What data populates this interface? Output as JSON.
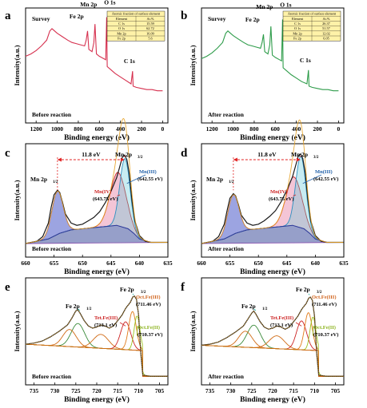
{
  "chart_data": [
    {
      "id": "a",
      "type": "line",
      "xlabel": "Binding energy (eV)",
      "ylabel": "Intensity(a.u.)",
      "xlim": [
        1300,
        -50
      ],
      "ylim": [
        0,
        10
      ],
      "xticks": [
        1200,
        1000,
        800,
        600,
        400,
        200,
        0
      ],
      "corner_top": "Survey",
      "corner_bottom": "Before reaction",
      "line_color": "#d6314f",
      "points": [
        [
          1300,
          5.8
        ],
        [
          1250,
          6.0
        ],
        [
          1200,
          6.3
        ],
        [
          1150,
          6.7
        ],
        [
          1100,
          7.2
        ],
        [
          1070,
          8.0
        ],
        [
          1050,
          8.2
        ],
        [
          1000,
          7.8
        ],
        [
          950,
          7.5
        ],
        [
          900,
          7.2
        ],
        [
          860,
          7.0
        ],
        [
          820,
          6.9
        ],
        [
          780,
          6.8
        ],
        [
          740,
          6.7
        ],
        [
          725,
          7.2
        ],
        [
          712,
          8.0
        ],
        [
          700,
          6.4
        ],
        [
          670,
          6.2
        ],
        [
          652,
          7.0
        ],
        [
          642,
          8.6
        ],
        [
          628,
          6.0
        ],
        [
          600,
          5.8
        ],
        [
          560,
          5.6
        ],
        [
          540,
          5.5
        ],
        [
          531,
          9.2
        ],
        [
          526,
          4.9
        ],
        [
          500,
          4.7
        ],
        [
          450,
          4.3
        ],
        [
          400,
          4.0
        ],
        [
          350,
          3.7
        ],
        [
          300,
          3.4
        ],
        [
          285,
          4.5
        ],
        [
          280,
          3.2
        ],
        [
          250,
          3.1
        ],
        [
          200,
          3.0
        ],
        [
          150,
          2.9
        ],
        [
          100,
          2.9
        ],
        [
          50,
          2.8
        ],
        [
          0,
          2.8
        ]
      ],
      "peaks": [
        {
          "label": "Fe 2p",
          "x": 710
        },
        {
          "label": "Mn 2p",
          "x": 642
        },
        {
          "label": "O 1s",
          "x": 531
        },
        {
          "label": "C 1s",
          "x": 285
        }
      ],
      "table": {
        "title": "Atomic fraction of surface element",
        "columns": [
          "Element",
          "At.%"
        ],
        "rows": [
          [
            "C 1s",
            "15.59"
          ],
          [
            "O 1s",
            "62.72"
          ],
          [
            "Mn 2p",
            "16.09"
          ],
          [
            "Fe 2p",
            "5.6"
          ]
        ]
      }
    },
    {
      "id": "b",
      "type": "line",
      "xlabel": "Binding energy (eV)",
      "ylabel": "Intensity(a.u.)",
      "xlim": [
        1300,
        -50
      ],
      "ylim": [
        0,
        10
      ],
      "xticks": [
        1200,
        1000,
        800,
        600,
        400,
        200,
        0
      ],
      "corner_top": "Survey",
      "corner_bottom": "After reaction",
      "line_color": "#2e9c4a",
      "points": [
        [
          1300,
          5.6
        ],
        [
          1250,
          5.8
        ],
        [
          1200,
          6.1
        ],
        [
          1150,
          6.5
        ],
        [
          1100,
          7.0
        ],
        [
          1070,
          7.8
        ],
        [
          1050,
          8.0
        ],
        [
          1000,
          7.6
        ],
        [
          950,
          7.3
        ],
        [
          900,
          7.0
        ],
        [
          860,
          6.8
        ],
        [
          820,
          6.7
        ],
        [
          780,
          6.6
        ],
        [
          740,
          6.5
        ],
        [
          725,
          7.0
        ],
        [
          712,
          7.7
        ],
        [
          700,
          6.2
        ],
        [
          670,
          6.0
        ],
        [
          652,
          6.8
        ],
        [
          642,
          8.4
        ],
        [
          628,
          5.9
        ],
        [
          600,
          5.7
        ],
        [
          560,
          5.5
        ],
        [
          540,
          5.4
        ],
        [
          531,
          9.0
        ],
        [
          526,
          4.8
        ],
        [
          500,
          4.6
        ],
        [
          450,
          4.2
        ],
        [
          400,
          3.9
        ],
        [
          350,
          3.6
        ],
        [
          300,
          3.4
        ],
        [
          285,
          4.6
        ],
        [
          280,
          3.2
        ],
        [
          250,
          3.1
        ],
        [
          200,
          3.0
        ],
        [
          150,
          2.9
        ],
        [
          100,
          2.9
        ],
        [
          50,
          2.8
        ],
        [
          0,
          2.8
        ]
      ],
      "peaks": [
        {
          "label": "Fe 2p",
          "x": 710
        },
        {
          "label": "Mn 2p",
          "x": 642
        },
        {
          "label": "O 1s",
          "x": 531
        },
        {
          "label": "C 1s",
          "x": 285
        }
      ],
      "table": {
        "title": "Atomic fraction of surface element",
        "columns": [
          "Element",
          "At.%"
        ],
        "rows": [
          [
            "C 1s",
            "26.37"
          ],
          [
            "O 1s",
            "51.57"
          ],
          [
            "Mn 2p",
            "12.02"
          ],
          [
            "Fe 2p",
            "6.05"
          ]
        ]
      }
    },
    {
      "id": "c",
      "type": "line",
      "xlabel": "Binding energy (eV)",
      "ylabel": "Intensity(a.u.)",
      "xlim": [
        660,
        635
      ],
      "ylim": [
        0,
        10
      ],
      "xticks": [
        660,
        655,
        650,
        645,
        640,
        635
      ],
      "corner_bottom": "Before reaction",
      "raw": [
        [
          660,
          1.2
        ],
        [
          658,
          1.4
        ],
        [
          657,
          1.8
        ],
        [
          656,
          3.0
        ],
        [
          655.5,
          4.4
        ],
        [
          655,
          5.5
        ],
        [
          654.4,
          5.9
        ],
        [
          654,
          5.7
        ],
        [
          653.5,
          4.8
        ],
        [
          653,
          3.8
        ],
        [
          652,
          3.0
        ],
        [
          651,
          2.8
        ],
        [
          650,
          2.9
        ],
        [
          649,
          3.2
        ],
        [
          648,
          3.5
        ],
        [
          647,
          4.0
        ],
        [
          646,
          4.8
        ],
        [
          645,
          5.8
        ],
        [
          644,
          7.0
        ],
        [
          643.5,
          7.9
        ],
        [
          643,
          8.8
        ],
        [
          642.6,
          9.0
        ],
        [
          642.2,
          8.6
        ],
        [
          641.8,
          7.4
        ],
        [
          641.3,
          5.0
        ],
        [
          640.8,
          3.2
        ],
        [
          640,
          1.9
        ],
        [
          639,
          1.4
        ],
        [
          638,
          1.3
        ],
        [
          636,
          1.3
        ],
        [
          635,
          1.3
        ]
      ],
      "background": [
        [
          660,
          1.2
        ],
        [
          656,
          1.6
        ],
        [
          654,
          2.1
        ],
        [
          652,
          2.4
        ],
        [
          650,
          2.5
        ],
        [
          648,
          2.6
        ],
        [
          646,
          2.7
        ],
        [
          644,
          2.8
        ],
        [
          642,
          2.5
        ],
        [
          641,
          2.1
        ],
        [
          640,
          1.6
        ],
        [
          638,
          1.3
        ],
        [
          635,
          1.3
        ]
      ],
      "mn4": {
        "center": 643.75,
        "height": 4.7,
        "width": 1.4,
        "color": "#cc2222"
      },
      "mn3": {
        "center": 642.55,
        "height": 6.1,
        "width": 0.9,
        "color": "#2b8fc0"
      },
      "doublet": {
        "center": 654.4,
        "height": 3.8,
        "width": 1.0,
        "color": "#7a2ea8"
      },
      "labels": {
        "mn12": "Mn 2p",
        "mn12_sub": "1/2",
        "mn32": "Mn 2p",
        "mn32_sub": "3/2",
        "sep": "11.8 eV",
        "mn4": "Mn(IV)",
        "mn4_val": "(643.75 eV)",
        "mn3": "Mn(III)",
        "mn3_val": "(642.55 eV)"
      }
    },
    {
      "id": "d",
      "type": "line",
      "xlabel": "Binding energy (eV)",
      "ylabel": "Intensity(a.u.)",
      "xlim": [
        660,
        635
      ],
      "ylim": [
        0,
        10
      ],
      "xticks": [
        660,
        655,
        650,
        645,
        640,
        635
      ],
      "corner_bottom": "After reaction",
      "raw": [
        [
          660,
          1.2
        ],
        [
          658,
          1.4
        ],
        [
          657,
          1.8
        ],
        [
          656,
          2.9
        ],
        [
          655.5,
          4.1
        ],
        [
          655,
          5.2
        ],
        [
          654.4,
          5.6
        ],
        [
          654,
          5.4
        ],
        [
          653.5,
          4.6
        ],
        [
          653,
          3.7
        ],
        [
          652,
          3.0
        ],
        [
          651,
          2.8
        ],
        [
          650,
          2.9
        ],
        [
          649,
          3.2
        ],
        [
          648,
          3.6
        ],
        [
          647,
          4.1
        ],
        [
          646,
          4.9
        ],
        [
          645,
          5.9
        ],
        [
          644,
          7.1
        ],
        [
          643.5,
          8.0
        ],
        [
          643,
          8.9
        ],
        [
          642.6,
          9.1
        ],
        [
          642.2,
          8.7
        ],
        [
          641.8,
          7.5
        ],
        [
          641.3,
          5.1
        ],
        [
          640.8,
          3.2
        ],
        [
          640,
          1.9
        ],
        [
          639,
          1.4
        ],
        [
          638,
          1.3
        ],
        [
          636,
          1.3
        ],
        [
          635,
          1.3
        ]
      ],
      "background": [
        [
          660,
          1.2
        ],
        [
          656,
          1.6
        ],
        [
          654,
          2.1
        ],
        [
          652,
          2.4
        ],
        [
          650,
          2.5
        ],
        [
          648,
          2.6
        ],
        [
          646,
          2.7
        ],
        [
          644,
          2.8
        ],
        [
          642,
          2.5
        ],
        [
          641,
          2.1
        ],
        [
          640,
          1.6
        ],
        [
          638,
          1.3
        ],
        [
          635,
          1.3
        ]
      ],
      "mn4": {
        "center": 643.75,
        "height": 4.3,
        "width": 1.4,
        "color": "#cc2222"
      },
      "mn3": {
        "center": 642.55,
        "height": 6.3,
        "width": 0.9,
        "color": "#2b8fc0"
      },
      "doublet": {
        "center": 654.4,
        "height": 3.5,
        "width": 1.0,
        "color": "#7a2ea8"
      },
      "labels": {
        "mn12": "Mn 2p",
        "mn12_sub": "1/2",
        "mn32": "Mn 2p",
        "mn32_sub": "3/2",
        "sep": "11.8 eV",
        "mn4": "Mn(IV)",
        "mn4_val": "(643.75 eV)",
        "mn3": "Mn(III)",
        "mn3_val": "(642.55 eV)"
      }
    },
    {
      "id": "e",
      "type": "line",
      "xlabel": "Binding energy (eV)",
      "ylabel": "Intensity(a.u.)",
      "xlim": [
        737,
        703
      ],
      "ylim": [
        0,
        10
      ],
      "xticks": [
        735,
        730,
        725,
        720,
        715,
        710,
        705
      ],
      "corner_bottom": "Before reaction",
      "raw": [
        [
          737,
          3.8
        ],
        [
          735,
          3.9
        ],
        [
          733,
          4.1
        ],
        [
          731,
          4.5
        ],
        [
          729,
          5.0
        ],
        [
          727,
          5.6
        ],
        [
          726,
          6.2
        ],
        [
          725,
          6.9
        ],
        [
          724.5,
          7.0
        ],
        [
          724,
          6.7
        ],
        [
          723,
          6.0
        ],
        [
          722,
          5.5
        ],
        [
          721,
          5.3
        ],
        [
          720,
          5.4
        ],
        [
          719,
          5.6
        ],
        [
          718,
          5.5
        ],
        [
          717,
          5.3
        ],
        [
          716,
          5.5
        ],
        [
          715,
          6.0
        ],
        [
          714,
          6.5
        ],
        [
          713,
          7.2
        ],
        [
          712,
          7.7
        ],
        [
          711.4,
          8.2
        ],
        [
          711,
          8.3
        ],
        [
          710.5,
          8.0
        ],
        [
          710,
          6.5
        ],
        [
          709.5,
          3.0
        ],
        [
          709,
          0.9
        ],
        [
          707,
          0.8
        ],
        [
          705,
          0.8
        ],
        [
          703,
          0.8
        ]
      ],
      "components": [
        {
          "center": 724.5,
          "height": 2.2,
          "width": 1.6,
          "color": "#3a8a3a"
        },
        {
          "center": 726.5,
          "height": 1.6,
          "width": 1.6,
          "color": "#d06a14"
        },
        {
          "center": 719.0,
          "height": 1.3,
          "width": 1.8,
          "color": "#d06a14"
        },
        {
          "center": 713.1,
          "height": 2.6,
          "width": 1.2,
          "color": "#cc2222"
        },
        {
          "center": 711.46,
          "height": 3.6,
          "width": 0.9,
          "color": "#e07a18"
        },
        {
          "center": 710.37,
          "height": 3.2,
          "width": 0.7,
          "color": "#9ac21e"
        }
      ],
      "labels": {
        "fe12": "Fe 2p",
        "fe12_sub": "1/2",
        "fe32": "Fe 2p",
        "fe32_sub": "3/2",
        "oct3": "Oct.Fe(III)",
        "oct3_val": "(711.46 eV)",
        "tet3": "Tet.Fe(III)",
        "tet3_val": "(713.1 eV)",
        "oct2": "Oct.Fe(II)",
        "oct2_val": "(710.37 eV)"
      }
    },
    {
      "id": "f",
      "type": "line",
      "xlabel": "Binding energy (eV)",
      "ylabel": "Intensity(a.u.)",
      "xlim": [
        737,
        703
      ],
      "ylim": [
        0,
        10
      ],
      "xticks": [
        735,
        730,
        725,
        720,
        715,
        710,
        705
      ],
      "corner_bottom": "After reaction",
      "raw": [
        [
          737,
          3.7
        ],
        [
          735,
          3.8
        ],
        [
          733,
          4.0
        ],
        [
          731,
          4.4
        ],
        [
          729,
          4.9
        ],
        [
          727,
          5.5
        ],
        [
          726,
          6.1
        ],
        [
          725,
          6.7
        ],
        [
          724.5,
          6.9
        ],
        [
          724,
          6.6
        ],
        [
          723,
          5.9
        ],
        [
          722,
          5.4
        ],
        [
          721,
          5.2
        ],
        [
          720,
          5.3
        ],
        [
          719,
          5.5
        ],
        [
          718,
          5.4
        ],
        [
          717,
          5.2
        ],
        [
          716,
          5.4
        ],
        [
          715,
          5.9
        ],
        [
          714,
          6.4
        ],
        [
          713,
          7.1
        ],
        [
          712,
          7.6
        ],
        [
          711.4,
          8.1
        ],
        [
          711,
          8.2
        ],
        [
          710.5,
          7.9
        ],
        [
          710,
          6.4
        ],
        [
          709.5,
          3.0
        ],
        [
          709,
          0.9
        ],
        [
          707,
          0.8
        ],
        [
          705,
          0.8
        ],
        [
          703,
          0.8
        ]
      ],
      "components": [
        {
          "center": 724.5,
          "height": 2.1,
          "width": 1.6,
          "color": "#3a8a3a"
        },
        {
          "center": 726.5,
          "height": 1.5,
          "width": 1.6,
          "color": "#d06a14"
        },
        {
          "center": 719.0,
          "height": 1.2,
          "width": 1.8,
          "color": "#d06a14"
        },
        {
          "center": 713.1,
          "height": 2.7,
          "width": 1.2,
          "color": "#cc2222"
        },
        {
          "center": 711.46,
          "height": 3.5,
          "width": 0.9,
          "color": "#e07a18"
        },
        {
          "center": 710.37,
          "height": 3.1,
          "width": 0.7,
          "color": "#9ac21e"
        }
      ],
      "labels": {
        "fe12": "Fe 2p",
        "fe12_sub": "1/2",
        "fe32": "Fe 2p",
        "fe32_sub": "3/2",
        "oct3": "Oct.Fe(III)",
        "oct3_val": "(711.46 eV)",
        "tet3": "Tet.Fe(III)",
        "tet3_val": "(713.1 eV)",
        "oct2": "Oct.Fe(II)",
        "oct2_val": "(710.37 eV)"
      }
    }
  ],
  "colors": {
    "raw_xps": "#1a1a1a",
    "fit_envelope": "#e6a020",
    "background": "#2a3a9a",
    "doublet_fill": "#4a5ac8",
    "arrow": "#e02020",
    "teal": "#1aa89a"
  }
}
